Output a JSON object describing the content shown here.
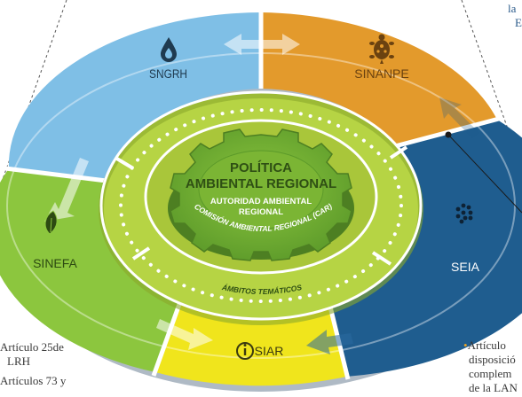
{
  "segments": {
    "sngrh": {
      "label": "SNGRH",
      "color": "#7fbfe6",
      "icon": "water-drop-icon"
    },
    "sinanpe": {
      "label": "SINANPE",
      "color": "#e39a2c",
      "icon": "turtle-icon"
    },
    "seia": {
      "label": "SEIA",
      "color": "#1f5d8f",
      "icon": "dots-cluster-icon"
    },
    "siar": {
      "label": "SIAR",
      "color": "#f0e51c",
      "icon": "info-icon"
    },
    "sinefa": {
      "label": "SINEFA",
      "color": "#8cc63e",
      "icon": "leaf-icon"
    }
  },
  "center": {
    "title_line1": "POLÍTICA",
    "title_line2": "AMBIENTAL REGIONAL",
    "subtitle_line1": "AUTORIDAD AMBIENTAL",
    "subtitle_line2": "REGIONAL",
    "commission": "COMISIÓN AMBIENTAL REGIONAL (CAR)",
    "thematic": "ÁMBITOS TEMÁTICOS"
  },
  "side_notes": {
    "left_line1": "Artículo 25de",
    "left_line2": "LRH",
    "left_line3": "Artículos 73 y",
    "right_line1": "Artículo",
    "right_line2": "disposició",
    "right_line3": "complem",
    "right_line4": "de la LAN",
    "top_right_line1": "la",
    "top_right_line2": "E"
  }
}
